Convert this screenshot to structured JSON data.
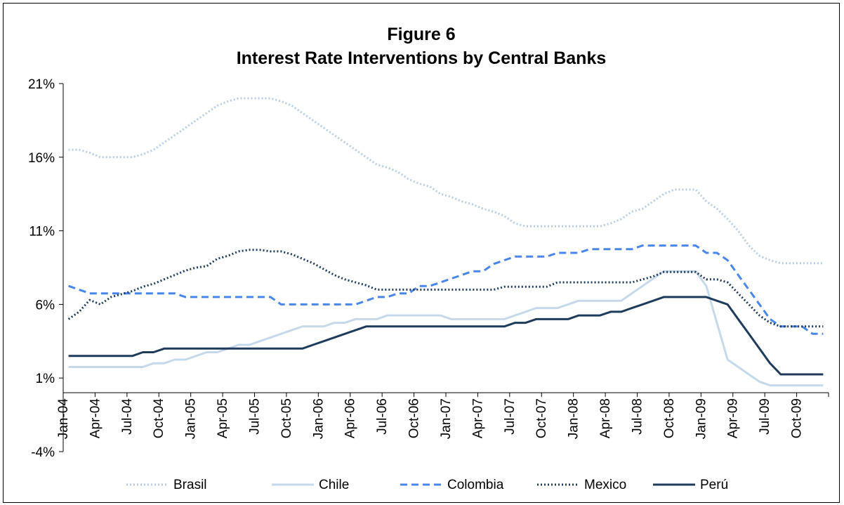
{
  "chart_data": {
    "type": "line",
    "title": "Figure 6",
    "subtitle": "Interest Rate Interventions by Central Banks",
    "xlabel": "",
    "ylabel": "",
    "ylim": [
      -4,
      21
    ],
    "y_ticks": [
      "21%",
      "16%",
      "11%",
      "6%",
      "1%",
      "-4%"
    ],
    "y_tick_values": [
      21,
      16,
      11,
      6,
      1,
      -4
    ],
    "x": [
      "Jan-04",
      "Feb-04",
      "Mar-04",
      "Apr-04",
      "May-04",
      "Jun-04",
      "Jul-04",
      "Aug-04",
      "Sep-04",
      "Oct-04",
      "Nov-04",
      "Dec-04",
      "Jan-05",
      "Feb-05",
      "Mar-05",
      "Apr-05",
      "May-05",
      "Jun-05",
      "Jul-05",
      "Aug-05",
      "Sep-05",
      "Oct-05",
      "Nov-05",
      "Dec-05",
      "Jan-06",
      "Feb-06",
      "Mar-06",
      "Apr-06",
      "May-06",
      "Jun-06",
      "Jul-06",
      "Aug-06",
      "Sep-06",
      "Oct-06",
      "Nov-06",
      "Dec-06",
      "Jan-07",
      "Feb-07",
      "Mar-07",
      "Apr-07",
      "May-07",
      "Jun-07",
      "Jul-07",
      "Aug-07",
      "Sep-07",
      "Oct-07",
      "Nov-07",
      "Dec-07",
      "Jan-08",
      "Feb-08",
      "Mar-08",
      "Apr-08",
      "May-08",
      "Jun-08",
      "Jul-08",
      "Aug-08",
      "Sep-08",
      "Oct-08",
      "Nov-08",
      "Dec-08",
      "Jan-09",
      "Feb-09",
      "Mar-09",
      "Apr-09",
      "May-09",
      "Jun-09",
      "Jul-09",
      "Aug-09",
      "Sep-09",
      "Oct-09",
      "Nov-09",
      "Dec-09"
    ],
    "x_tick_labels": [
      "Jan-04",
      "Apr-04",
      "Jul-04",
      "Oct-04",
      "Jan-05",
      "Apr-05",
      "Jul-05",
      "Oct-05",
      "Jan-06",
      "Apr-06",
      "Jul-06",
      "Oct-06",
      "Jan-07",
      "Apr-07",
      "Jul-07",
      "Oct-07",
      "Jan-08",
      "Apr-08",
      "Jul-08",
      "Oct-08",
      "Jan-09",
      "Apr-09",
      "Jul-09",
      "Oct-09"
    ],
    "grid": false,
    "legend_position": "bottom",
    "series": [
      {
        "name": "Brasil",
        "color": "#b8cce0",
        "dash": "dotted",
        "values": [
          16.5,
          16.5,
          16.3,
          16.0,
          16.0,
          16.0,
          16.0,
          16.2,
          16.5,
          17.0,
          17.5,
          18.0,
          18.5,
          19.0,
          19.5,
          19.8,
          20.0,
          20.0,
          20.0,
          20.0,
          19.8,
          19.5,
          19.0,
          18.5,
          18.0,
          17.5,
          17.0,
          16.5,
          16.0,
          15.5,
          15.3,
          15.0,
          14.5,
          14.2,
          14.0,
          13.5,
          13.3,
          13.0,
          12.8,
          12.5,
          12.3,
          12.0,
          11.5,
          11.3,
          11.3,
          11.3,
          11.3,
          11.3,
          11.3,
          11.3,
          11.3,
          11.5,
          11.8,
          12.3,
          12.5,
          13.0,
          13.5,
          13.8,
          13.8,
          13.8,
          13.0,
          12.5,
          11.8,
          11.0,
          10.0,
          9.3,
          9.0,
          8.8,
          8.8,
          8.8,
          8.8,
          8.8
        ]
      },
      {
        "name": "Chile",
        "color": "#c6d9ea",
        "dash": "solid",
        "values": [
          1.75,
          1.75,
          1.75,
          1.75,
          1.75,
          1.75,
          1.75,
          1.75,
          2.0,
          2.0,
          2.25,
          2.25,
          2.5,
          2.75,
          2.75,
          3.0,
          3.25,
          3.25,
          3.5,
          3.75,
          4.0,
          4.25,
          4.5,
          4.5,
          4.5,
          4.75,
          4.75,
          5.0,
          5.0,
          5.0,
          5.25,
          5.25,
          5.25,
          5.25,
          5.25,
          5.25,
          5.0,
          5.0,
          5.0,
          5.0,
          5.0,
          5.0,
          5.25,
          5.5,
          5.75,
          5.75,
          5.75,
          6.0,
          6.25,
          6.25,
          6.25,
          6.25,
          6.25,
          6.75,
          7.25,
          7.75,
          8.25,
          8.25,
          8.25,
          8.25,
          7.25,
          4.75,
          2.25,
          1.75,
          1.25,
          0.75,
          0.5,
          0.5,
          0.5,
          0.5,
          0.5,
          0.5
        ]
      },
      {
        "name": "Colombia",
        "color": "#4a86e8",
        "dash": "dashed",
        "values": [
          7.25,
          7.0,
          6.75,
          6.75,
          6.75,
          6.75,
          6.75,
          6.75,
          6.75,
          6.75,
          6.75,
          6.5,
          6.5,
          6.5,
          6.5,
          6.5,
          6.5,
          6.5,
          6.5,
          6.5,
          6.0,
          6.0,
          6.0,
          6.0,
          6.0,
          6.0,
          6.0,
          6.0,
          6.25,
          6.5,
          6.5,
          6.75,
          6.75,
          7.25,
          7.25,
          7.5,
          7.75,
          8.0,
          8.25,
          8.25,
          8.75,
          9.0,
          9.25,
          9.25,
          9.25,
          9.25,
          9.5,
          9.5,
          9.5,
          9.75,
          9.75,
          9.75,
          9.75,
          9.75,
          10.0,
          10.0,
          10.0,
          10.0,
          10.0,
          10.0,
          9.5,
          9.5,
          9.0,
          8.0,
          7.0,
          6.0,
          5.0,
          4.5,
          4.5,
          4.5,
          4.0,
          4.0
        ]
      },
      {
        "name": "Mexico",
        "color": "#1f3b5a",
        "dash": "dotted",
        "values": [
          5.0,
          5.5,
          6.3,
          6.0,
          6.5,
          6.7,
          6.9,
          7.2,
          7.4,
          7.7,
          8.0,
          8.3,
          8.5,
          8.6,
          9.1,
          9.3,
          9.6,
          9.7,
          9.7,
          9.6,
          9.6,
          9.4,
          9.1,
          8.8,
          8.4,
          8.0,
          7.7,
          7.5,
          7.3,
          7.0,
          7.0,
          7.0,
          7.0,
          7.0,
          7.0,
          7.0,
          7.0,
          7.0,
          7.0,
          7.0,
          7.0,
          7.2,
          7.2,
          7.2,
          7.2,
          7.2,
          7.5,
          7.5,
          7.5,
          7.5,
          7.5,
          7.5,
          7.5,
          7.5,
          7.7,
          7.9,
          8.2,
          8.2,
          8.2,
          8.2,
          7.7,
          7.7,
          7.5,
          6.75,
          6.0,
          5.25,
          4.75,
          4.5,
          4.5,
          4.5,
          4.5,
          4.5
        ]
      },
      {
        "name": "Perú",
        "color": "#1f3b5a",
        "dash": "solid",
        "values": [
          2.5,
          2.5,
          2.5,
          2.5,
          2.5,
          2.5,
          2.5,
          2.75,
          2.75,
          3.0,
          3.0,
          3.0,
          3.0,
          3.0,
          3.0,
          3.0,
          3.0,
          3.0,
          3.0,
          3.0,
          3.0,
          3.0,
          3.0,
          3.25,
          3.5,
          3.75,
          4.0,
          4.25,
          4.5,
          4.5,
          4.5,
          4.5,
          4.5,
          4.5,
          4.5,
          4.5,
          4.5,
          4.5,
          4.5,
          4.5,
          4.5,
          4.5,
          4.75,
          4.75,
          5.0,
          5.0,
          5.0,
          5.0,
          5.25,
          5.25,
          5.25,
          5.5,
          5.5,
          5.75,
          6.0,
          6.25,
          6.5,
          6.5,
          6.5,
          6.5,
          6.5,
          6.25,
          6.0,
          5.0,
          4.0,
          3.0,
          2.0,
          1.25,
          1.25,
          1.25,
          1.25,
          1.25
        ]
      }
    ]
  }
}
